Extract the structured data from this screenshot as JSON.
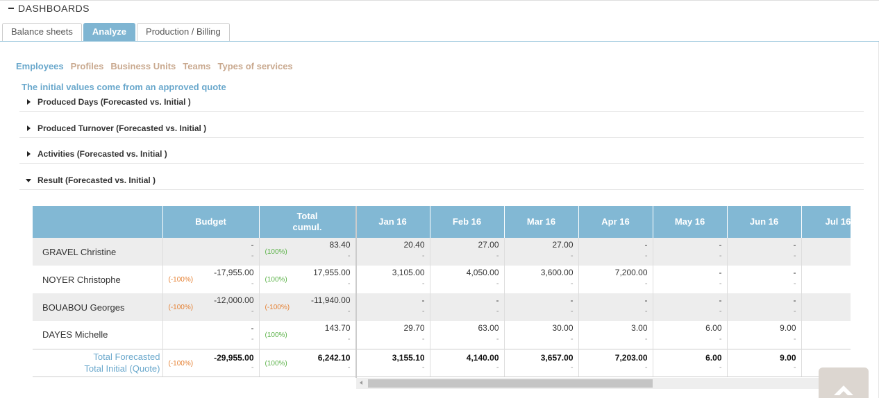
{
  "header": {
    "title": "DASHBOARDS"
  },
  "tabs": [
    {
      "label": "Balance sheets"
    },
    {
      "label": "Analyze"
    },
    {
      "label": "Production / Billing"
    }
  ],
  "subnav": [
    "Employees",
    "Profiles",
    "Business Units",
    "Teams",
    "Types of services"
  ],
  "info_text": "The initial values come from an approved quote",
  "sections": [
    {
      "label": "Produced Days (Forecasted vs. Initial )"
    },
    {
      "label": "Produced Turnover (Forecasted vs. Initial )"
    },
    {
      "label": "Activities (Forecasted vs. Initial )"
    },
    {
      "label": "Result (Forecasted vs. Initial )"
    }
  ],
  "table": {
    "headers": {
      "budget": "Budget",
      "total_l1": "Total",
      "total_l2": "cumul.",
      "months": [
        "Jan 16",
        "Feb 16",
        "Mar 16",
        "Apr 16",
        "May 16",
        "Jun 16",
        "Jul 16"
      ]
    },
    "rows": [
      {
        "name": "GRAVEL Christine",
        "budget": "-",
        "budget_sub": "-",
        "budget_pct": "",
        "total": "83.40",
        "total_sub": "-",
        "total_pct": "(100%)",
        "months": [
          "20.40",
          "27.00",
          "27.00",
          "-",
          "-",
          "-",
          ""
        ],
        "sub": "-"
      },
      {
        "name": "NOYER Christophe",
        "budget": "-17,955.00",
        "budget_sub": "-",
        "budget_pct": "(-100%)",
        "total": "17,955.00",
        "total_sub": "-",
        "total_pct": "(100%)",
        "months": [
          "3,105.00",
          "4,050.00",
          "3,600.00",
          "7,200.00",
          "-",
          "-",
          ""
        ],
        "sub": "-"
      },
      {
        "name": "BOUABOU Georges",
        "budget": "-12,000.00",
        "budget_sub": "-",
        "budget_pct": "(-100%)",
        "total": "-11,940.00",
        "total_sub": "-",
        "total_pct": "(-100%)",
        "months": [
          "-",
          "-",
          "-",
          "-",
          "-",
          "-",
          ""
        ],
        "sub": "-"
      },
      {
        "name": "DAYES Michelle",
        "budget": "-",
        "budget_sub": "-",
        "budget_pct": "",
        "total": "143.70",
        "total_sub": "-",
        "total_pct": "(100%)",
        "months": [
          "29.70",
          "63.00",
          "30.00",
          "3.00",
          "6.00",
          "9.00",
          ""
        ],
        "sub": "-"
      }
    ],
    "total": {
      "label1": "Total Forecasted",
      "label2": "Total Initial (Quote)",
      "budget": "-29,955.00",
      "budget_sub": "-",
      "budget_pct": "(-100%)",
      "total": "6,242.10",
      "total_sub": "-",
      "total_pct": "(100%)",
      "months": [
        "3,155.10",
        "4,140.00",
        "3,657.00",
        "7,203.00",
        "6.00",
        "9.00",
        ""
      ],
      "sub": "-"
    }
  }
}
